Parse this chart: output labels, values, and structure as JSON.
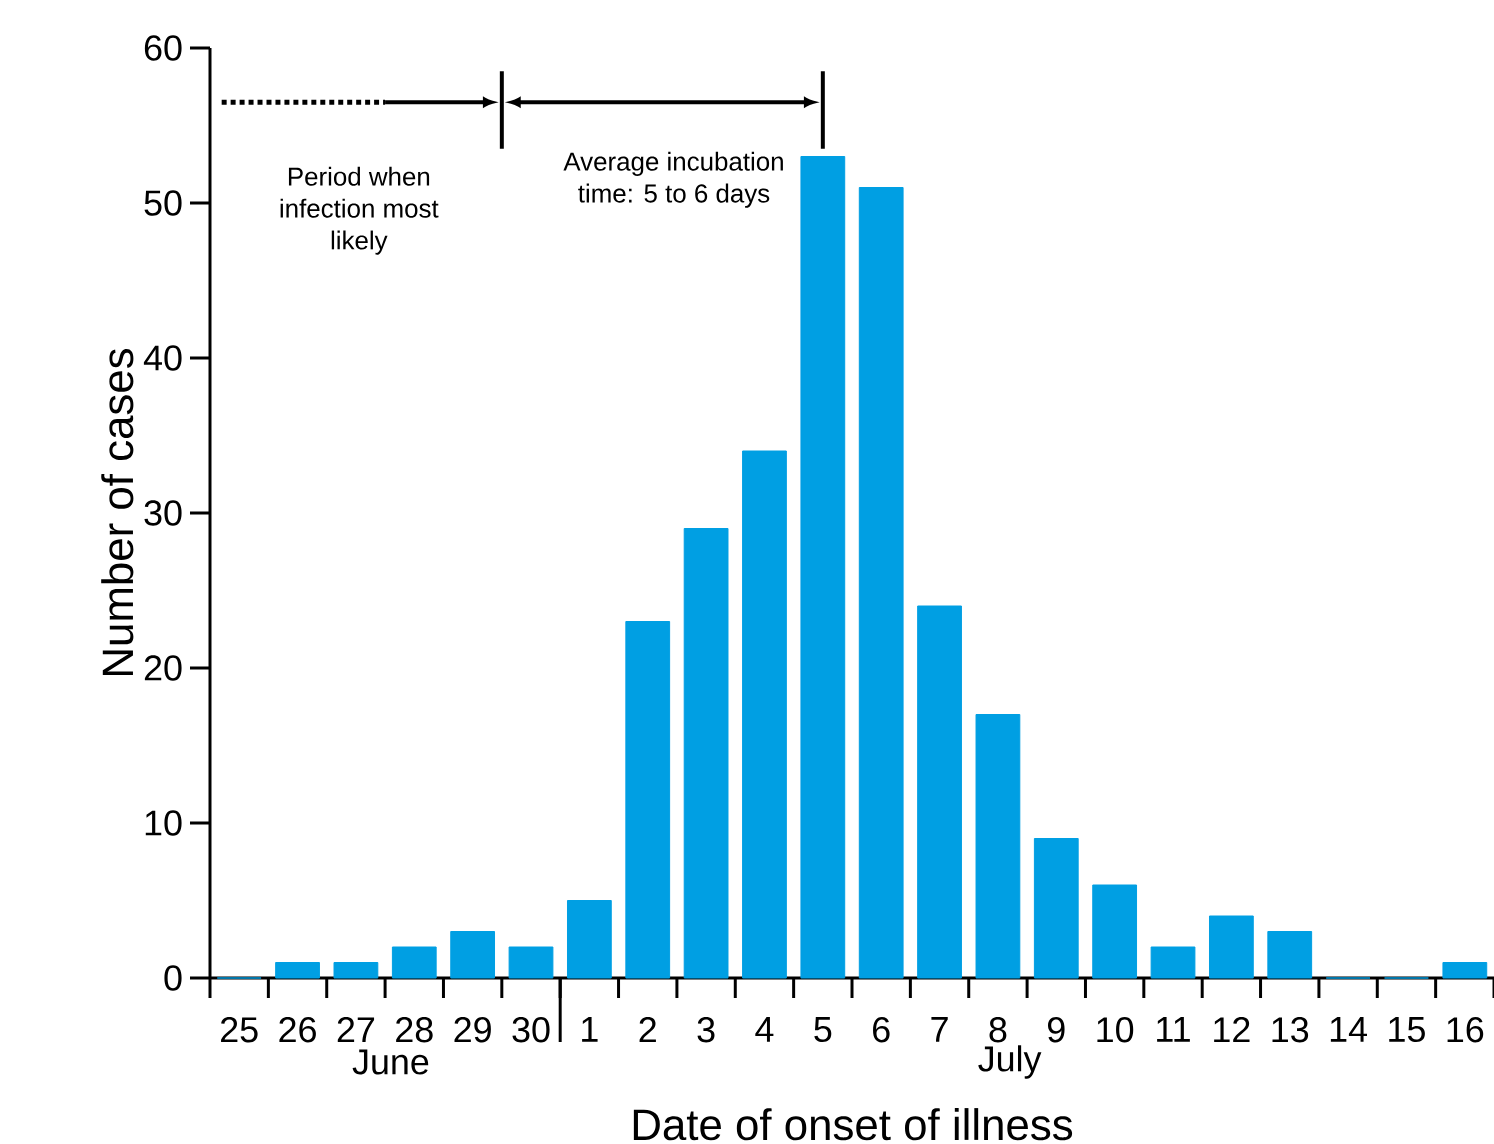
{
  "chart_data": {
    "type": "bar",
    "xlabel": "Date of onset of illness",
    "ylabel": "Number of cases",
    "categories": [
      "25",
      "26",
      "27",
      "28",
      "29",
      "30",
      "1",
      "2",
      "3",
      "4",
      "5",
      "6",
      "7",
      "8",
      "9",
      "10",
      "11",
      "12",
      "13",
      "14",
      "15",
      "16"
    ],
    "values": [
      0,
      1,
      1,
      2,
      3,
      2,
      5,
      23,
      29,
      34,
      53,
      51,
      24,
      17,
      9,
      6,
      2,
      4,
      3,
      0,
      0,
      1
    ],
    "color": "#009fe3",
    "ylim": [
      0,
      60
    ],
    "yticks": [
      0,
      10,
      20,
      30,
      40,
      50,
      60
    ],
    "annotations": [
      "Period when infection most likely",
      "Average incubation time: 5 to 6 days",
      "June",
      "July"
    ]
  }
}
